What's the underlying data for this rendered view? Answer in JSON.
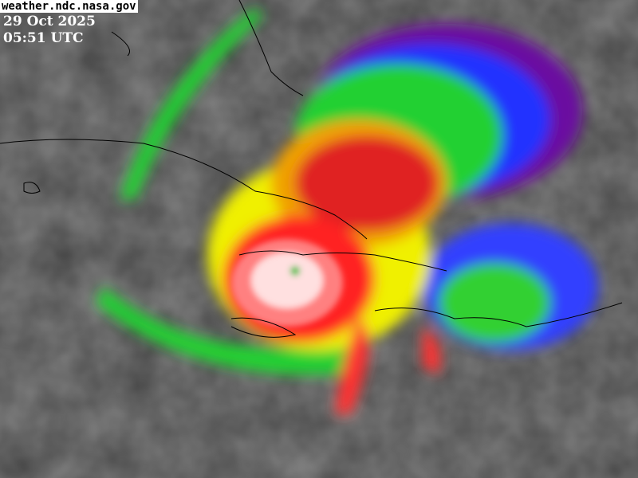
{
  "image": {
    "type": "infrared satellite imagery, enhanced color",
    "subject": "hurricane over the Caribbean"
  },
  "overlay": {
    "credit": "weather.ndc.nasa.gov",
    "date": "29 Oct 2025",
    "time": "05:51 UTC"
  },
  "colors": {
    "background_clouds": "#4a4a4a",
    "eye_core": "#ffffff",
    "red_band": "#ff2020",
    "yellow_band": "#f0f000",
    "green_band": "#20d020",
    "blue_band": "#2020ff",
    "purple_band": "#7010a0",
    "coastlines": "#000000"
  }
}
